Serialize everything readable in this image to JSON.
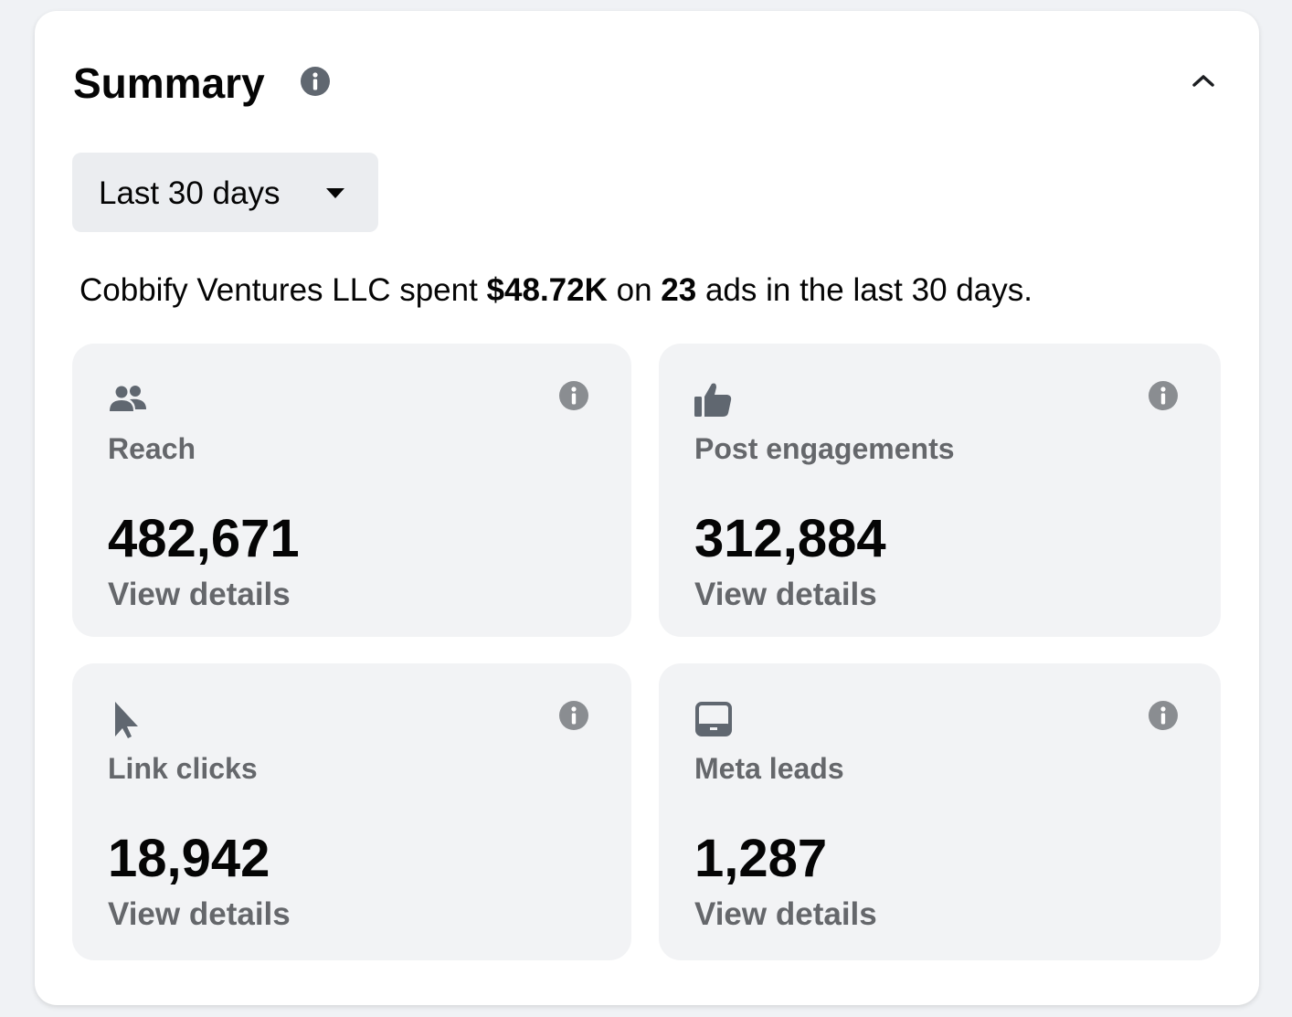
{
  "header": {
    "title": "Summary"
  },
  "date_range": {
    "label": "Last 30 days"
  },
  "summary": {
    "parts": [
      "Cobbify Ventures LLC spent ",
      "$48.72K",
      " on ",
      "23",
      " ads in the last 30 days."
    ]
  },
  "metrics": [
    {
      "label": "Reach",
      "value": "482,671",
      "link": "View details"
    },
    {
      "label": "Post engagements",
      "value": "312,884",
      "link": "View details"
    },
    {
      "label": "Link clicks",
      "value": "18,942",
      "link": "View details"
    },
    {
      "label": "Meta leads",
      "value": "1,287",
      "link": "View details"
    }
  ]
}
